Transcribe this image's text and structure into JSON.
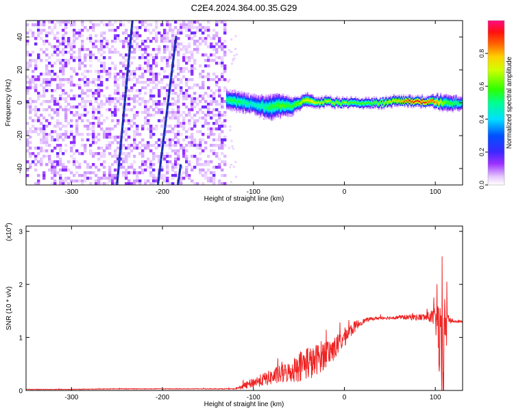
{
  "figure_title": "C2E4.2024.364.00.35.G29",
  "colors": {
    "snr_line": "#ee2222",
    "track": "#1e2aa8",
    "noise": "#6a1fe0",
    "ridge_peak": "#ff1010"
  },
  "chart_data": [
    {
      "type": "heatmap",
      "title": "C2E4.2024.364.00.35.G29",
      "xlabel": "Height of straight line (km)",
      "ylabel": "Frequency (Hz)",
      "xlim": [
        -350,
        130
      ],
      "ylim": [
        -50,
        50
      ],
      "x_ticks": [
        -300,
        -200,
        -100,
        0,
        100
      ],
      "y_ticks": [
        -40,
        -20,
        0,
        20,
        40
      ],
      "x_tick_labels": [
        "-300",
        "-200",
        "-100",
        "0",
        "100"
      ],
      "y_tick_labels": [
        "-40",
        "-20",
        "0",
        "20",
        "40"
      ],
      "noise_region_x": [
        -350,
        -130
      ],
      "colorbar": {
        "label": "Normalized spectral amplitude",
        "range": [
          0,
          1
        ],
        "ticks": [
          0.0,
          0.2,
          0.4,
          0.6,
          0.8
        ],
        "tick_labels": [
          "0.0",
          "0.2",
          "0.4",
          "0.6",
          "0.8"
        ]
      },
      "diagonal_tracks": [
        {
          "x_start": -250,
          "y_start": -50,
          "x_end": -233,
          "y_end": 50
        },
        {
          "x_start": -205,
          "y_start": -50,
          "x_end": -185,
          "y_end": 40
        },
        {
          "x_start": -183,
          "y_start": -50,
          "x_end": -180,
          "y_end": -38
        }
      ],
      "ridge": {
        "x": [
          -130,
          -120,
          -110,
          -100,
          -90,
          -80,
          -70,
          -60,
          -50,
          -40,
          -30,
          -20,
          -10,
          0,
          10,
          20,
          30,
          40,
          50,
          60,
          70,
          80,
          90,
          100,
          110,
          130
        ],
        "y": [
          2,
          1,
          0,
          -1,
          -2,
          -3,
          -1,
          -2,
          0,
          2,
          0,
          1,
          0,
          0,
          0,
          0,
          0,
          0,
          1,
          1,
          1,
          1,
          1,
          1,
          0,
          0
        ],
        "amplitude": [
          0.5,
          0.55,
          0.5,
          0.45,
          0.5,
          0.55,
          0.6,
          0.55,
          0.65,
          0.75,
          0.7,
          0.7,
          0.65,
          0.65,
          0.6,
          0.6,
          0.62,
          0.65,
          0.72,
          0.8,
          0.9,
          0.92,
          0.9,
          0.85,
          0.6,
          0.5
        ],
        "spread": [
          6,
          6,
          6,
          6,
          7,
          8,
          7,
          6,
          4,
          4,
          3,
          3,
          3,
          3,
          3,
          3,
          3,
          3,
          3,
          3,
          3,
          3,
          3,
          4,
          5,
          4
        ]
      }
    },
    {
      "type": "line",
      "xlabel": "Height of straight line (km)",
      "ylabel": "SNR (10 * v/v)",
      "y_multiplier_label": "(x10",
      "y_multiplier_exp": "4",
      "y_multiplier_close": ")",
      "xlim": [
        -350,
        130
      ],
      "ylim": [
        0,
        3.1
      ],
      "x_ticks": [
        -300,
        -200,
        -100,
        0,
        100
      ],
      "y_ticks": [
        0,
        1,
        2,
        3
      ],
      "x_tick_labels": [
        "-300",
        "-200",
        "-100",
        "0",
        "100"
      ],
      "y_tick_labels": [
        "0",
        "1",
        "2",
        "3"
      ],
      "series": [
        {
          "x": [
            -350,
            -300,
            -250,
            -200,
            -150,
            -120,
            -110,
            -100,
            -90,
            -80,
            -70,
            -60,
            -50,
            -45,
            -40,
            -35,
            -30,
            -25,
            -20,
            -15,
            -10,
            -5,
            0,
            5,
            10,
            15,
            20,
            25,
            30,
            35,
            40,
            50,
            60,
            70,
            80,
            90,
            95,
            100,
            103,
            106,
            108,
            110,
            112,
            114,
            120,
            130
          ],
          "y": [
            0.02,
            0.02,
            0.03,
            0.03,
            0.03,
            0.03,
            0.08,
            0.15,
            0.2,
            0.25,
            0.3,
            0.35,
            0.45,
            0.5,
            0.55,
            0.5,
            0.6,
            0.65,
            0.7,
            0.75,
            0.8,
            0.9,
            1.0,
            1.1,
            1.18,
            1.25,
            1.3,
            1.33,
            1.35,
            1.36,
            1.37,
            1.37,
            1.38,
            1.38,
            1.38,
            1.38,
            1.4,
            1.35,
            1.2,
            0.6,
            0.3,
            0.8,
            1.5,
            1.35,
            1.3,
            1.3
          ],
          "noise": [
            0.005,
            0.005,
            0.006,
            0.006,
            0.006,
            0.006,
            0.06,
            0.1,
            0.12,
            0.15,
            0.18,
            0.2,
            0.3,
            0.3,
            0.35,
            0.3,
            0.3,
            0.3,
            0.28,
            0.25,
            0.22,
            0.2,
            0.18,
            0.15,
            0.12,
            0.08,
            0.05,
            0.04,
            0.03,
            0.03,
            0.03,
            0.03,
            0.04,
            0.05,
            0.06,
            0.08,
            0.12,
            0.2,
            0.6,
            0.9,
            1.2,
            1.2,
            0.9,
            0.1,
            0.02,
            0.02
          ]
        }
      ]
    }
  ]
}
